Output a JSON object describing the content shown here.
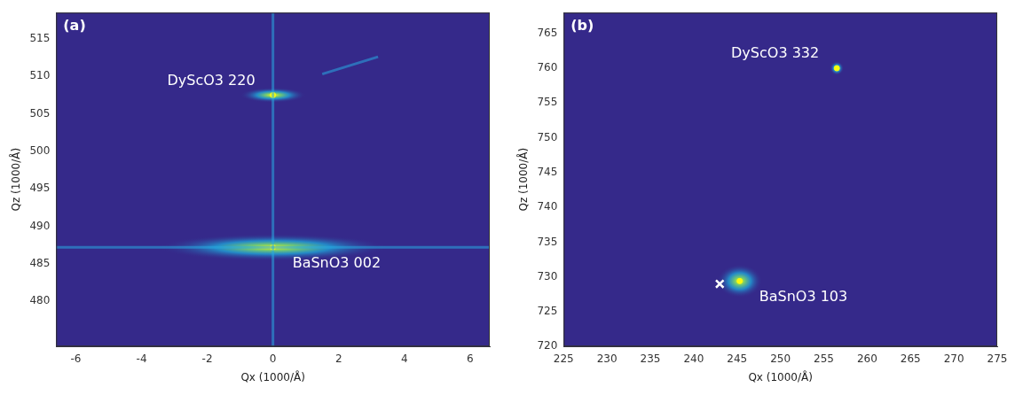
{
  "chart_data": [
    {
      "type": "scatter",
      "title": "(a)",
      "x_label": "Qx (1000/Å)",
      "y_label": "Qz (1000/Å)",
      "xlim": [
        -6.6,
        6.6
      ],
      "xticks": [
        -6,
        -4,
        -2,
        0,
        2,
        4,
        6
      ],
      "ylim": [
        474,
        518.5
      ],
      "yticks": [
        480,
        485,
        490,
        495,
        500,
        505,
        510,
        515
      ],
      "grid": false,
      "color": "#f9fb0e",
      "peaks": [
        {
          "label": "DyScO3 220",
          "x": 0,
          "y": 507.5,
          "dx": 1.0,
          "dy": 1.0
        },
        {
          "label": "BaSnO3 002",
          "x": 0,
          "y": 487.2,
          "dx": 3.5,
          "dy": 1.8
        }
      ],
      "streaks": [
        {
          "x": [
            0,
            0
          ],
          "y": [
            474,
            518.5
          ]
        },
        {
          "x": [
            -6.6,
            6.6
          ],
          "y": [
            487.2,
            487.2
          ]
        },
        {
          "x": [
            1.5,
            3.2
          ],
          "y": [
            510.3,
            512.6
          ]
        }
      ]
    },
    {
      "type": "scatter",
      "title": "(b)",
      "x_label": "Qx (1000/Å)",
      "y_label": "Qz (1000/Å)",
      "xlim": [
        225,
        275
      ],
      "xticks": [
        225,
        230,
        235,
        240,
        245,
        250,
        255,
        260,
        265,
        270,
        275
      ],
      "ylim": [
        720,
        768
      ],
      "yticks": [
        720,
        725,
        730,
        735,
        740,
        745,
        750,
        755,
        760,
        765
      ],
      "grid": false,
      "color": "#f9fb0e",
      "peaks": [
        {
          "label": "DyScO3 332",
          "x": 256.5,
          "y": 760,
          "dx": 0.8,
          "dy": 1.0
        },
        {
          "label": "BaSnO3 103",
          "x": 245.3,
          "y": 729.4,
          "dx": 2.6,
          "dy": 2.4
        }
      ],
      "series": [
        {
          "x": [
            243
          ],
          "y": [
            729
          ],
          "marker": "cross",
          "color": "#ffffff"
        }
      ]
    }
  ]
}
